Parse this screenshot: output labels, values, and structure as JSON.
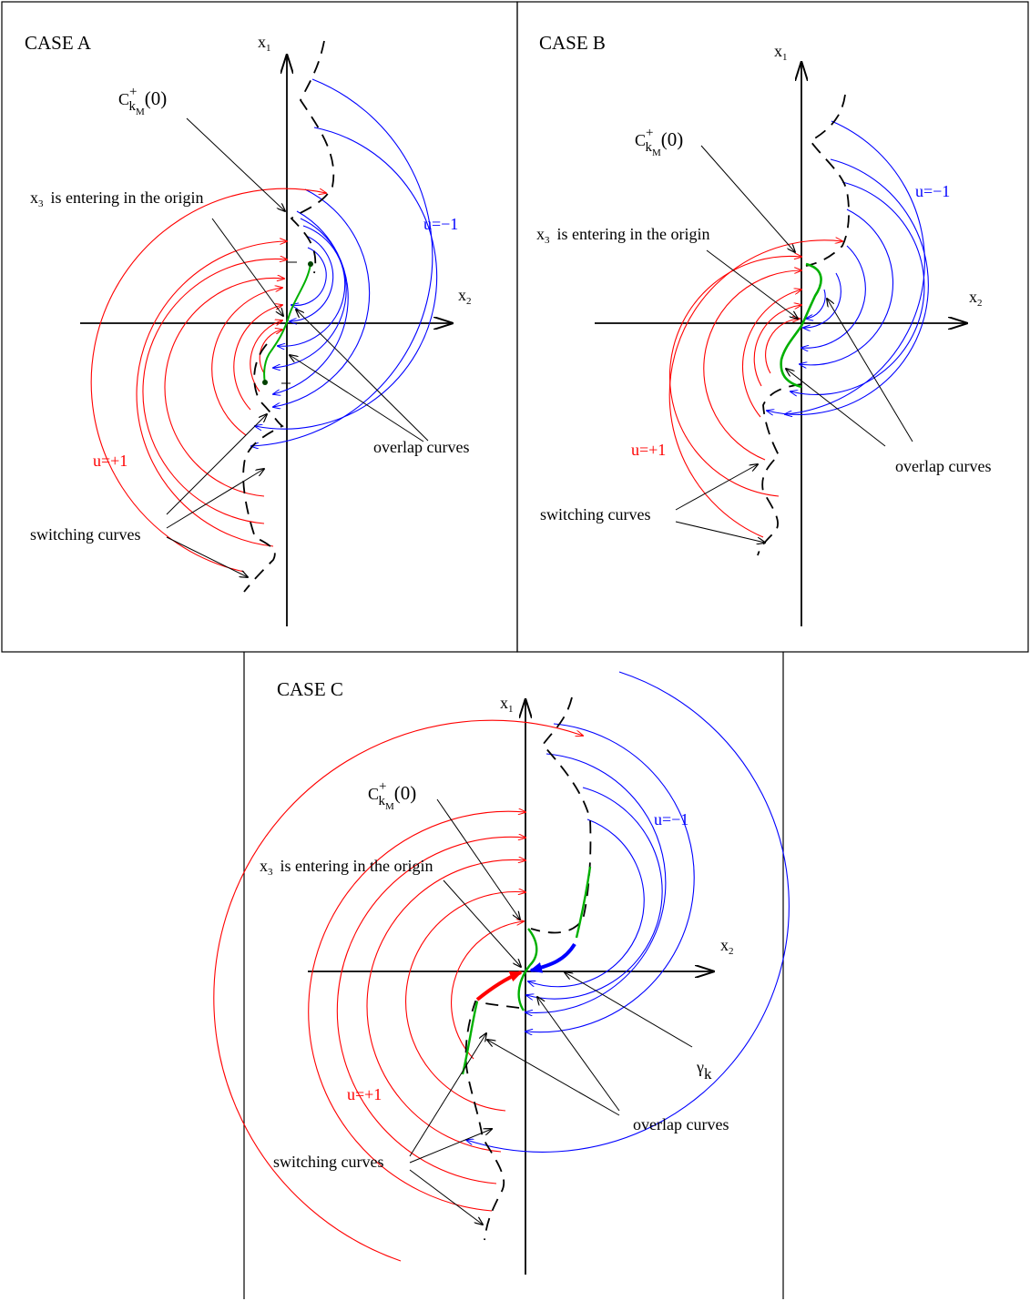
{
  "panels": [
    {
      "id": "a",
      "title": "CASE A",
      "axis_x1": "x",
      "axis_x1_sub": "1",
      "axis_x2": "x",
      "axis_x2_sub": "2",
      "c_main": "C",
      "c_sup": "+",
      "c_k": "k",
      "c_M": "M",
      "c_arg": "(0)",
      "x3_main": "x",
      "x3_sub": "3",
      "x3_text": "is entering in the origin",
      "u_minus": "u=−1",
      "u_plus": "u=+1",
      "overlap": "overlap curves",
      "switching": "switching curves"
    },
    {
      "id": "b",
      "title": "CASE B",
      "axis_x1": "x",
      "axis_x1_sub": "1",
      "axis_x2": "x",
      "axis_x2_sub": "2",
      "c_main": "C",
      "c_sup": "+",
      "c_k": "k",
      "c_M": "M",
      "c_arg": "(0)",
      "x3_main": "x",
      "x3_sub": "3",
      "x3_text": "is entering in the origin",
      "u_minus": "u=−1",
      "u_plus": "u=+1",
      "overlap": "overlap curves",
      "switching": "switching curves"
    },
    {
      "id": "c",
      "title": "CASE C",
      "axis_x1": "x",
      "axis_x1_sub": "1",
      "axis_x2": "x",
      "axis_x2_sub": "2",
      "c_main": "C",
      "c_sup": "+",
      "c_k": "k",
      "c_M": "M",
      "c_arg": "(0)",
      "x3_main": "x",
      "x3_sub": "3",
      "x3_text": "is entering in the origin",
      "u_minus": "u=−1",
      "u_plus": "u=+1",
      "overlap": "overlap curves",
      "switching": "switching curves",
      "gamma": "γ",
      "gamma_sub": "k"
    }
  ],
  "colors": {
    "u_plus_arcs": "#ff0000",
    "u_minus_arcs": "#0000ff",
    "overlap_curves": "#00b000",
    "switching_curves": "#000000",
    "frame": "#000000"
  }
}
